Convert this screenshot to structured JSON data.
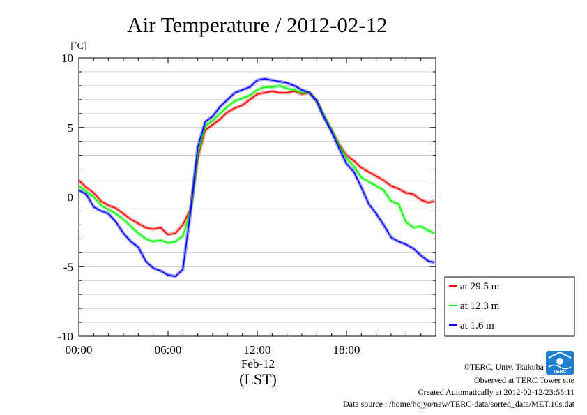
{
  "chart_data": {
    "type": "line",
    "title": "Air Temperature / 2012-02-12",
    "ylabel": "[˚C]",
    "xlabel": "(LST)",
    "date_label": "Feb-12",
    "ylim": [
      -10,
      10
    ],
    "xlim": [
      "00:00",
      "24:00"
    ],
    "x_ticks": [
      "00:00",
      "06:00",
      "12:00",
      "18:00"
    ],
    "y_ticks": [
      "10",
      "5",
      "0",
      "-5",
      "-10"
    ],
    "grid": true,
    "legend_position": "right",
    "x": [
      "00:00",
      "00:30",
      "01:00",
      "01:30",
      "02:00",
      "02:30",
      "03:00",
      "03:30",
      "04:00",
      "04:30",
      "05:00",
      "05:30",
      "06:00",
      "06:30",
      "07:00",
      "07:30",
      "08:00",
      "08:30",
      "09:00",
      "09:30",
      "10:00",
      "10:30",
      "11:00",
      "11:30",
      "12:00",
      "12:30",
      "13:00",
      "13:30",
      "14:00",
      "14:30",
      "15:00",
      "15:30",
      "16:00",
      "16:30",
      "17:00",
      "17:30",
      "18:00",
      "18:30",
      "19:00",
      "19:30",
      "20:00",
      "20:30",
      "21:00",
      "21:30",
      "22:00",
      "22:30",
      "23:00",
      "23:30",
      "23:55"
    ],
    "series": [
      {
        "name": "at 29.5 m",
        "color": "#ff0000",
        "values": [
          1.2,
          0.7,
          0.3,
          -0.3,
          -0.6,
          -0.8,
          -1.2,
          -1.6,
          -1.9,
          -2.2,
          -2.3,
          -2.2,
          -2.7,
          -2.6,
          -2.0,
          -0.9,
          2.8,
          4.8,
          5.2,
          5.6,
          6.1,
          6.4,
          6.6,
          7.0,
          7.4,
          7.5,
          7.6,
          7.5,
          7.5,
          7.6,
          7.4,
          7.5,
          6.9,
          5.8,
          4.8,
          3.8,
          3.0,
          2.6,
          2.1,
          1.8,
          1.5,
          1.2,
          0.8,
          0.6,
          0.3,
          0.2,
          -0.2,
          -0.4,
          -0.3
        ]
      },
      {
        "name": "at 12.3 m",
        "color": "#00ff00",
        "values": [
          0.8,
          0.4,
          0.0,
          -0.6,
          -0.9,
          -1.2,
          -1.6,
          -2.1,
          -2.6,
          -3.0,
          -3.2,
          -3.1,
          -3.3,
          -3.2,
          -2.8,
          -1.1,
          3.1,
          5.1,
          5.5,
          6.0,
          6.5,
          6.9,
          7.1,
          7.3,
          7.7,
          7.9,
          7.9,
          8.0,
          7.8,
          7.7,
          7.5,
          7.5,
          6.9,
          5.8,
          4.8,
          3.7,
          2.8,
          2.2,
          1.4,
          1.1,
          0.8,
          0.5,
          -0.3,
          -0.5,
          -1.8,
          -2.2,
          -2.1,
          -2.4,
          -2.6
        ]
      },
      {
        "name": "at 1.6 m",
        "color": "#0000ff",
        "values": [
          0.5,
          0.2,
          -0.7,
          -1.0,
          -1.2,
          -1.8,
          -2.6,
          -3.2,
          -3.6,
          -4.6,
          -5.1,
          -5.3,
          -5.6,
          -5.7,
          -5.2,
          -1.2,
          3.6,
          5.4,
          5.8,
          6.5,
          7.0,
          7.5,
          7.7,
          7.9,
          8.4,
          8.5,
          8.4,
          8.3,
          8.2,
          8.0,
          7.7,
          7.5,
          6.9,
          5.7,
          4.7,
          3.5,
          2.4,
          1.8,
          0.7,
          -0.5,
          -1.2,
          -2.0,
          -2.9,
          -3.2,
          -3.4,
          -3.7,
          -4.2,
          -4.6,
          -4.7
        ]
      }
    ]
  },
  "credits": {
    "copyright": "©TERC, Univ. Tsukuba",
    "observed": "Observed at TERC Tower site",
    "created": "Created Automatically at 2012-02-12/23:55:11",
    "source": "Data source : /home/hojyo/new/TERC-data/sorted_data/MET.10s.dat",
    "logo_text": "TERC"
  }
}
